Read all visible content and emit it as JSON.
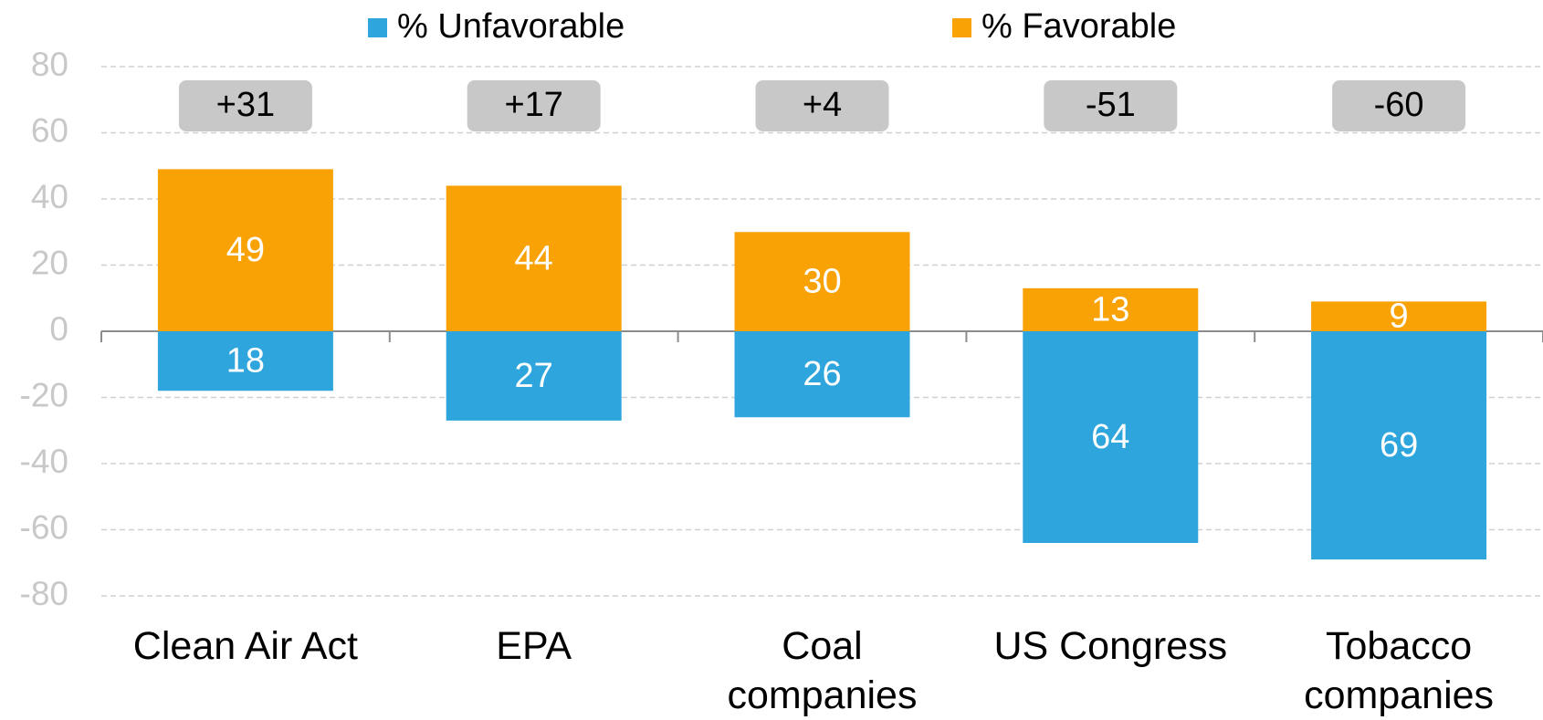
{
  "chart_data": {
    "type": "diverging-bar",
    "categories": [
      "Clean Air Act",
      "EPA",
      "Coal\ncompanies",
      "US Congress",
      "Tobacco\ncompanies"
    ],
    "series": [
      {
        "name": "% Unfavorable",
        "color": "#2ea6dd",
        "values": [
          -18,
          -27,
          -26,
          -64,
          -69
        ],
        "value_labels": [
          "18",
          "27",
          "26",
          "64",
          "69"
        ]
      },
      {
        "name": "% Favorable",
        "color": "#f8a205",
        "values": [
          49,
          44,
          30,
          13,
          9
        ]
      }
    ],
    "net_labels": [
      "+31",
      "+17",
      "+4",
      "-51",
      "-60"
    ],
    "ylim": [
      -80,
      80
    ],
    "yticks": [
      -80,
      -60,
      -40,
      -20,
      0,
      20,
      40,
      60,
      80
    ],
    "grid": true
  }
}
